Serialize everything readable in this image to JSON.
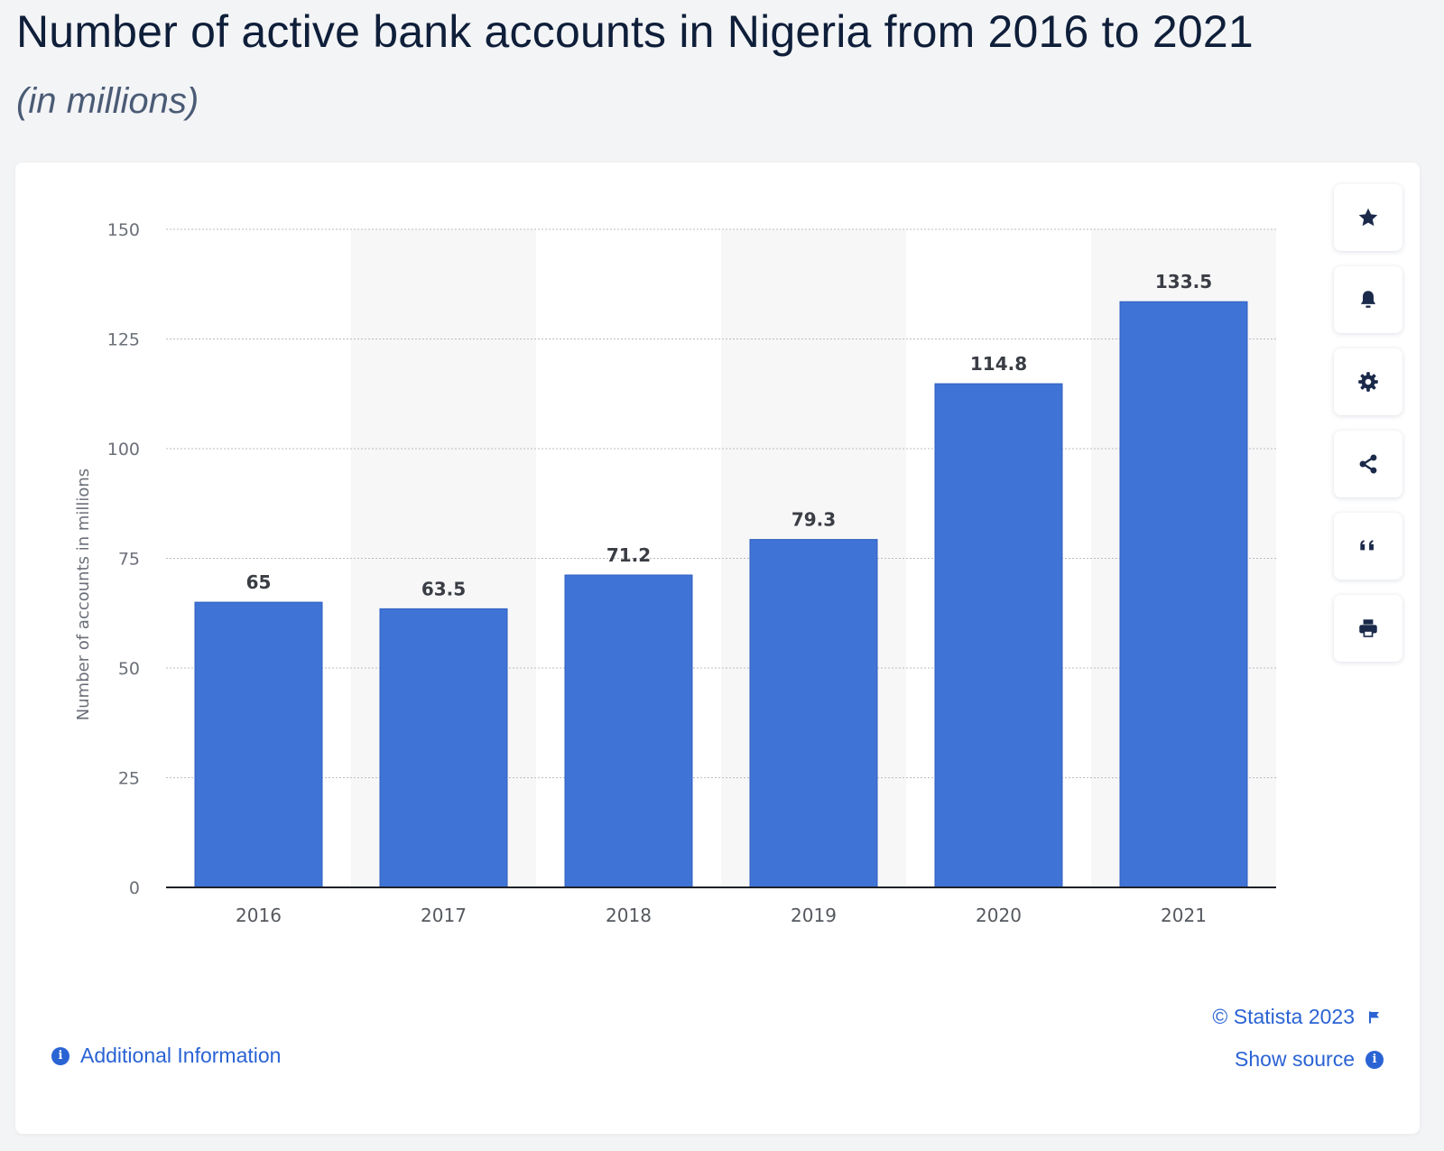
{
  "header": {
    "title": "Number of active bank accounts in Nigeria from 2016 to 2021",
    "subtitle": "(in millions)"
  },
  "chart_data": {
    "type": "bar",
    "categories": [
      "2016",
      "2017",
      "2018",
      "2019",
      "2020",
      "2021"
    ],
    "values": [
      65,
      63.5,
      71.2,
      79.3,
      114.8,
      133.5
    ],
    "value_labels": [
      "65",
      "63.5",
      "71.2",
      "79.3",
      "114.8",
      "133.5"
    ],
    "ylabel": "Number of accounts in millions",
    "xlabel": "",
    "ylim": [
      0,
      150
    ],
    "yticks": [
      0,
      25,
      50,
      75,
      100,
      125,
      150
    ],
    "grid": true,
    "bar_color": "#3f73d6",
    "alternate_band_color": "#f7f7f8"
  },
  "toolbar": {
    "icons": [
      "star-icon",
      "bell-icon",
      "gear-icon",
      "share-icon",
      "quote-icon",
      "print-icon"
    ]
  },
  "footer": {
    "additional_info": "Additional Information",
    "copyright": "© Statista 2023",
    "show_source": "Show source",
    "info_glyph": "i",
    "link_color": "#2a63d4"
  }
}
